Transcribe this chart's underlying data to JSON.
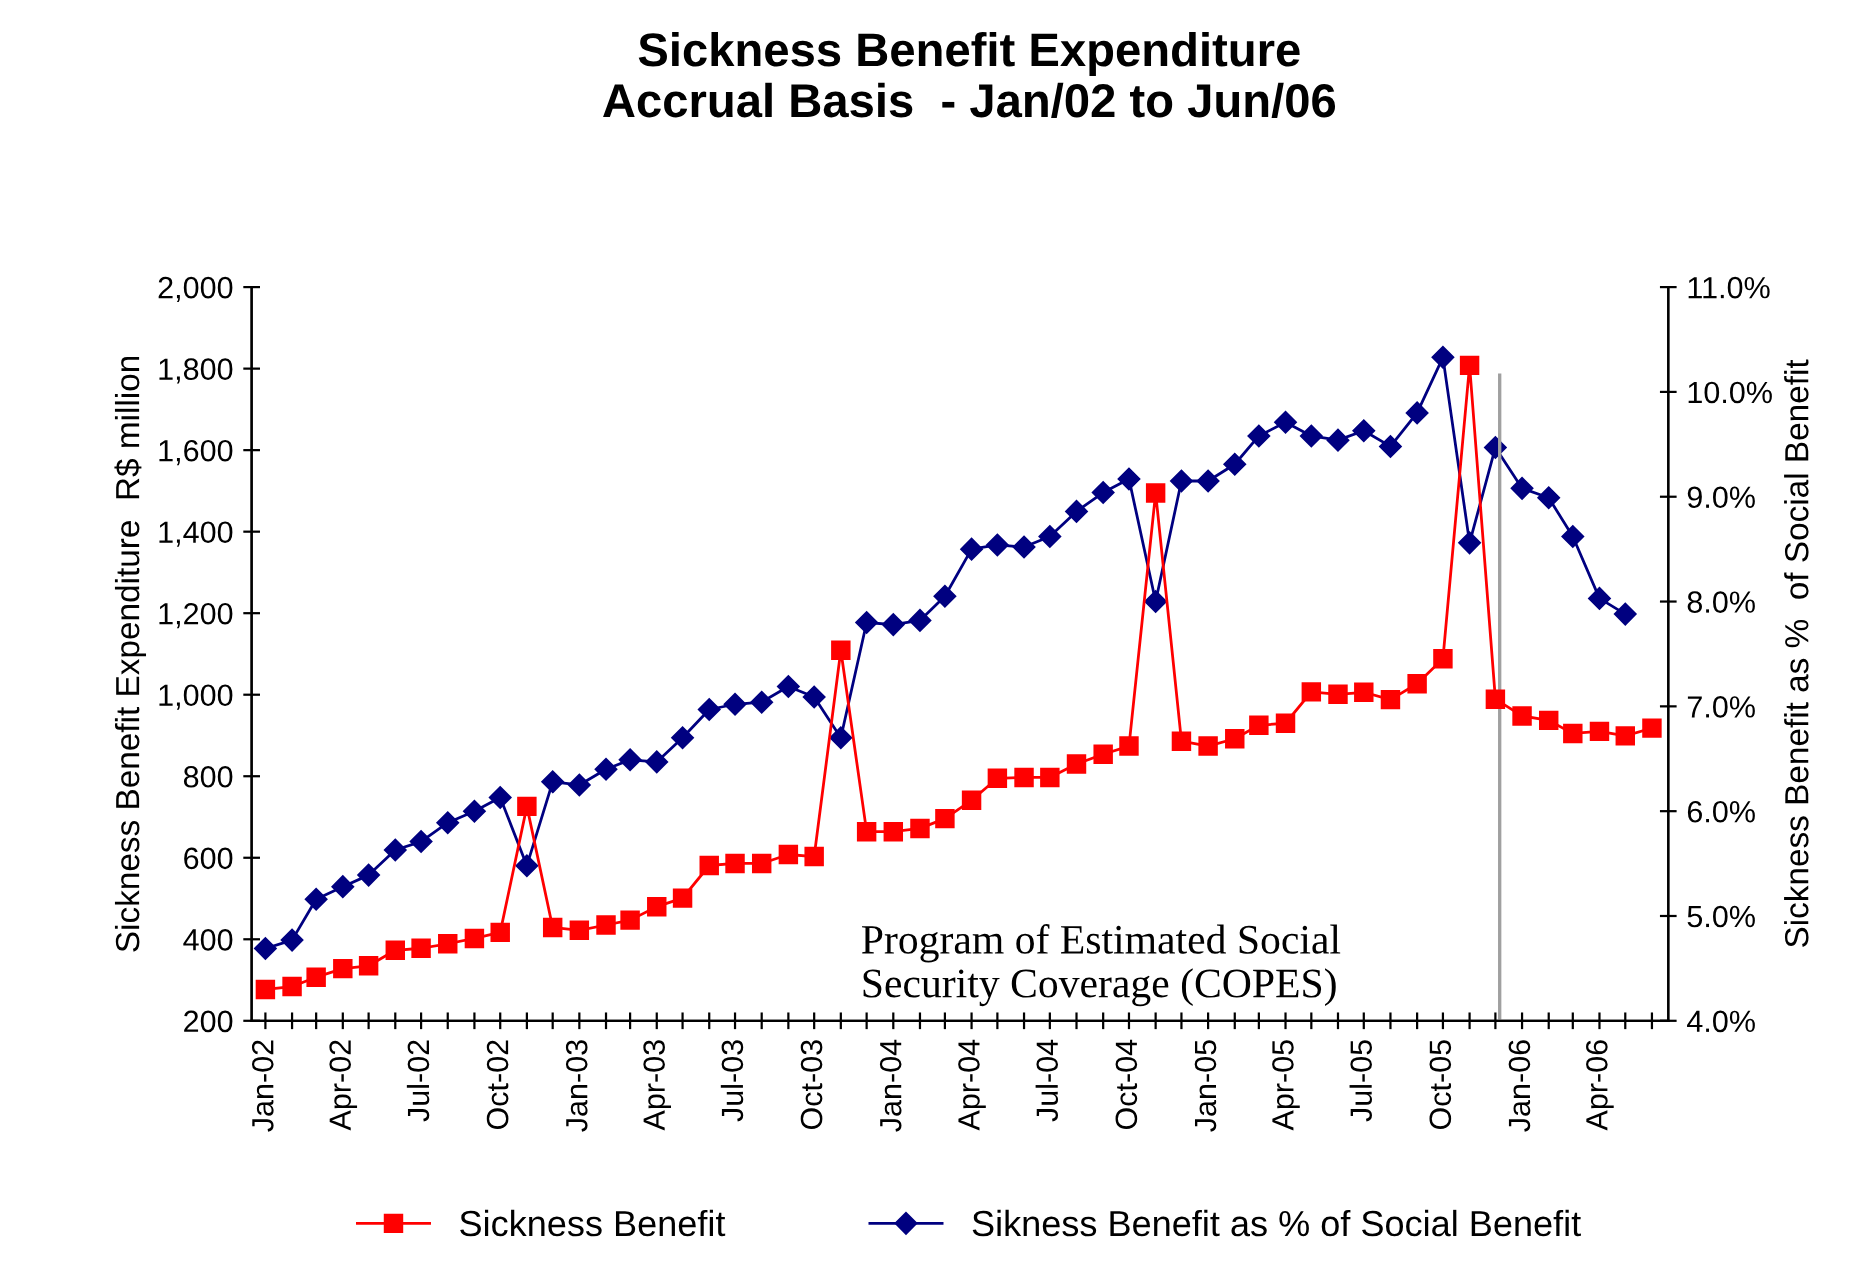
{
  "chart_data": {
    "type": "line",
    "title": "Sickness Benefit Expenditure\nAccrual Basis  - Jan/02 to Jun/06",
    "ylabel": "Sickness Benefit Expenditure  R$ million",
    "y2label": "Sickness Benefit as %  of Social Benefit",
    "x": [
      "2002-01",
      "2002-02",
      "2002-03",
      "2002-04",
      "2002-05",
      "2002-06",
      "2002-07",
      "2002-08",
      "2002-09",
      "2002-10",
      "2002-11",
      "2002-12",
      "2003-01",
      "2003-02",
      "2003-03",
      "2003-04",
      "2003-05",
      "2003-06",
      "2003-07",
      "2003-08",
      "2003-09",
      "2003-10",
      "2003-11",
      "2003-12",
      "2004-01",
      "2004-02",
      "2004-03",
      "2004-04",
      "2004-05",
      "2004-06",
      "2004-07",
      "2004-08",
      "2004-09",
      "2004-10",
      "2004-11",
      "2004-12",
      "2005-01",
      "2005-02",
      "2005-03",
      "2005-04",
      "2005-05",
      "2005-06",
      "2005-07",
      "2005-08",
      "2005-09",
      "2005-10",
      "2005-11",
      "2005-12",
      "2006-01",
      "2006-02",
      "2006-03",
      "2006-04",
      "2006-05",
      "2006-06"
    ],
    "series": [
      {
        "name": "Sickness Benefit",
        "color": "#ff0000",
        "marker": "square",
        "values": [
          277,
          284,
          307,
          328,
          335,
          373,
          378,
          389,
          402,
          417,
          726,
          429,
          422,
          435,
          447,
          480,
          501,
          581,
          586,
          586,
          608,
          603,
          1109,
          664,
          664,
          672,
          696,
          741,
          795,
          797,
          797,
          830,
          854,
          874,
          1495,
          886,
          874,
          892,
          925,
          930,
          1007,
          1001,
          1006,
          988,
          1027,
          1088,
          1808,
          989,
          948,
          937,
          905,
          910,
          899,
          918
        ]
      },
      {
        "name": "Sikness Benefit as % of Social Benefit",
        "color": "#000080",
        "marker": "diamond",
        "axis": "y2",
        "values": [
          4.69,
          4.77,
          5.16,
          5.28,
          5.39,
          5.63,
          5.71,
          5.89,
          6.0,
          6.13,
          5.48,
          6.28,
          6.25,
          6.4,
          6.49,
          6.47,
          6.7,
          6.97,
          7.02,
          7.04,
          7.19,
          7.09,
          6.7,
          7.8,
          7.78,
          7.82,
          8.05,
          8.5,
          8.54,
          8.52,
          8.62,
          8.86,
          9.04,
          9.17,
          8.0,
          9.15,
          9.15,
          9.31,
          9.58,
          9.71,
          9.58,
          9.54,
          9.63,
          9.48,
          9.8,
          10.33,
          8.56,
          9.47,
          9.08,
          8.99,
          8.62,
          8.03,
          7.88,
          null
        ]
      }
    ],
    "xlim": [
      "2001-12-16",
      "2006-06-20"
    ],
    "xticks": [
      {
        "value": "2002-01",
        "label": "Jan-02"
      },
      {
        "value": "2002-02",
        "label": null
      },
      {
        "value": "2002-03",
        "label": null
      },
      {
        "value": "2002-04",
        "label": "Apr-02"
      },
      {
        "value": "2002-05",
        "label": null
      },
      {
        "value": "2002-06",
        "label": null
      },
      {
        "value": "2002-07",
        "label": "Jul-02"
      },
      {
        "value": "2002-08",
        "label": null
      },
      {
        "value": "2002-09",
        "label": null
      },
      {
        "value": "2002-10",
        "label": "Oct-02"
      },
      {
        "value": "2002-11",
        "label": null
      },
      {
        "value": "2002-12",
        "label": null
      },
      {
        "value": "2003-01",
        "label": "Jan-03"
      },
      {
        "value": "2003-02",
        "label": null
      },
      {
        "value": "2003-03",
        "label": null
      },
      {
        "value": "2003-04",
        "label": "Apr-03"
      },
      {
        "value": "2003-05",
        "label": null
      },
      {
        "value": "2003-06",
        "label": null
      },
      {
        "value": "2003-07",
        "label": "Jul-03"
      },
      {
        "value": "2003-08",
        "label": null
      },
      {
        "value": "2003-09",
        "label": null
      },
      {
        "value": "2003-10",
        "label": "Oct-03"
      },
      {
        "value": "2003-11",
        "label": null
      },
      {
        "value": "2003-12",
        "label": null
      },
      {
        "value": "2004-01",
        "label": "Jan-04"
      },
      {
        "value": "2004-02",
        "label": null
      },
      {
        "value": "2004-03",
        "label": null
      },
      {
        "value": "2004-04",
        "label": "Apr-04"
      },
      {
        "value": "2004-05",
        "label": null
      },
      {
        "value": "2004-06",
        "label": null
      },
      {
        "value": "2004-07",
        "label": "Jul-04"
      },
      {
        "value": "2004-08",
        "label": null
      },
      {
        "value": "2004-09",
        "label": null
      },
      {
        "value": "2004-10",
        "label": "Oct-04"
      },
      {
        "value": "2004-11",
        "label": null
      },
      {
        "value": "2004-12",
        "label": null
      },
      {
        "value": "2005-01",
        "label": "Jan-05"
      },
      {
        "value": "2005-02",
        "label": null
      },
      {
        "value": "2005-03",
        "label": null
      },
      {
        "value": "2005-04",
        "label": "Apr-05"
      },
      {
        "value": "2005-05",
        "label": null
      },
      {
        "value": "2005-06",
        "label": null
      },
      {
        "value": "2005-07",
        "label": "Jul-05"
      },
      {
        "value": "2005-08",
        "label": null
      },
      {
        "value": "2005-09",
        "label": null
      },
      {
        "value": "2005-10",
        "label": "Oct-05"
      },
      {
        "value": "2005-11",
        "label": null
      },
      {
        "value": "2005-12",
        "label": null
      },
      {
        "value": "2006-01",
        "label": "Jan-06"
      },
      {
        "value": "2006-02",
        "label": null
      },
      {
        "value": "2006-03",
        "label": null
      },
      {
        "value": "2006-04",
        "label": "Apr-06"
      },
      {
        "value": "2006-05",
        "label": null
      },
      {
        "value": "2006-06",
        "label": null
      }
    ],
    "ylim": [
      200,
      2000
    ],
    "yticks": [
      {
        "value": 200,
        "label": "200"
      },
      {
        "value": 400,
        "label": "400"
      },
      {
        "value": 600,
        "label": "600"
      },
      {
        "value": 800,
        "label": "800"
      },
      {
        "value": 1000,
        "label": "1,000"
      },
      {
        "value": 1200,
        "label": "1,200"
      },
      {
        "value": 1400,
        "label": "1,400"
      },
      {
        "value": 1600,
        "label": "1,600"
      },
      {
        "value": 1800,
        "label": "1,800"
      },
      {
        "value": 2000,
        "label": "2,000"
      }
    ],
    "y2lim": [
      4,
      11
    ],
    "y2ticks": [
      {
        "value": 4,
        "label": "4.0%"
      },
      {
        "value": 5,
        "label": "5.0%"
      },
      {
        "value": 6,
        "label": "6.0%"
      },
      {
        "value": 7,
        "label": "7.0%"
      },
      {
        "value": 8,
        "label": "8.0%"
      },
      {
        "value": 9,
        "label": "9.0%"
      },
      {
        "value": 10,
        "label": "10.0%"
      },
      {
        "value": 11,
        "label": "11.0%"
      }
    ],
    "ref_lines": [
      {
        "axis": "x",
        "value": "2005-12-06",
        "color": "#a0a0a0"
      }
    ],
    "annotations": [
      "Program of Estimated Social\nSecurity Coverage (COPES)"
    ],
    "legend": "bottom",
    "grid": false,
    "line_style": "solid"
  }
}
